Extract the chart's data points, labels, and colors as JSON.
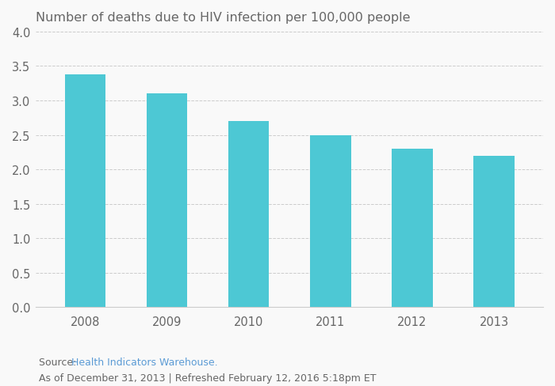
{
  "title": "Number of deaths due to HIV infection per 100,000 people",
  "categories": [
    "2008",
    "2009",
    "2010",
    "2011",
    "2012",
    "2013"
  ],
  "values": [
    3.38,
    3.1,
    2.7,
    2.5,
    2.3,
    2.2
  ],
  "bar_color": "#4DC8D4",
  "background_color": "#f9f9f9",
  "ylim": [
    0,
    4.0
  ],
  "yticks": [
    0,
    0.5,
    1.0,
    1.5,
    2.0,
    2.5,
    3.0,
    3.5,
    4.0
  ],
  "grid_color": "#cccccc",
  "title_fontsize": 11.5,
  "tick_fontsize": 10.5,
  "source_text": "Source: ",
  "source_link": "Health Indicators Warehouse.",
  "source_detail": "As of December 31, 2013 | Refreshed February 12, 2016 5:18pm ET",
  "text_color": "#666666",
  "link_color": "#5b9bd5"
}
